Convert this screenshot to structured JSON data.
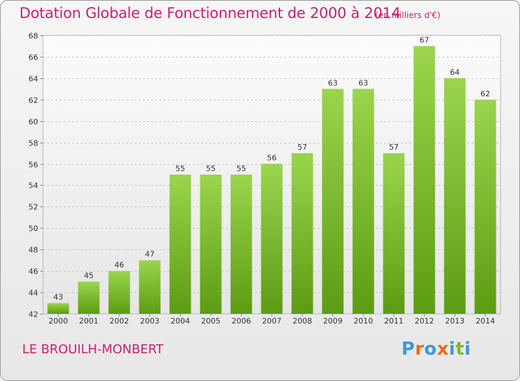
{
  "header": {
    "title": "Dotation Globale de Fonctionnement de 2000 à 2014",
    "unit_note": "(en milliers d'€)"
  },
  "footer": {
    "commune": "LE BROUILH-MONBERT",
    "logo_text": "Proxiti",
    "logo_colors": [
      "#3d9ad6",
      "#e76a1f",
      "#3d9ad6",
      "#e76a1f",
      "#3d9ad6",
      "#7fb83a",
      "#3d9ad6"
    ]
  },
  "colors": {
    "accent": "#cc1f6e",
    "bar_top": "#9ad54d",
    "bar_bottom": "#5c9c12"
  },
  "chart_data": {
    "type": "bar",
    "title": "Dotation Globale de Fonctionnement de 2000 à 2014",
    "subtitle": "(en milliers d'€)",
    "xlabel": "",
    "ylabel": "",
    "categories": [
      "2000",
      "2001",
      "2002",
      "2003",
      "2004",
      "2005",
      "2006",
      "2007",
      "2008",
      "2009",
      "2010",
      "2011",
      "2012",
      "2013",
      "2014"
    ],
    "values": [
      43,
      45,
      46,
      47,
      55,
      55,
      55,
      56,
      57,
      63,
      63,
      57,
      67,
      64,
      62
    ],
    "ylim": [
      42,
      68
    ],
    "yticks": [
      42,
      44,
      46,
      48,
      50,
      52,
      54,
      56,
      58,
      60,
      62,
      64,
      66,
      68
    ],
    "grid": true,
    "legend": "none"
  }
}
